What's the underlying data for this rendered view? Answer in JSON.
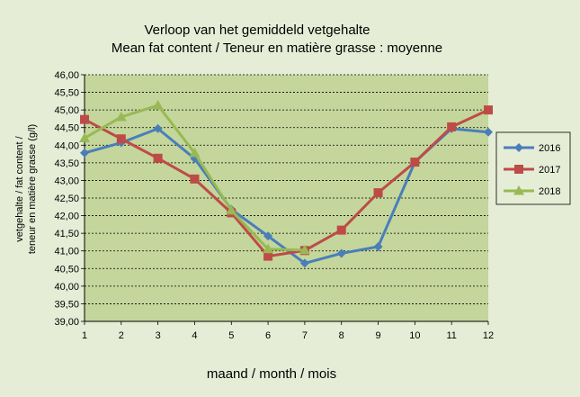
{
  "chart_data": {
    "type": "line",
    "title_line1": "Verloop van het gemiddeld vetgehalte",
    "title_line2": "Mean fat content / Teneur en matière grasse : moyenne",
    "xlabel": "maand / month / mois",
    "ylabel_line1": "vetgehalte / fat content /",
    "ylabel_line2": "teneur en matière grasse (g/l)",
    "x": [
      1,
      2,
      3,
      4,
      5,
      6,
      7,
      8,
      9,
      10,
      11,
      12
    ],
    "ylim": [
      39,
      46
    ],
    "yticks": [
      "39,00",
      "39,50",
      "40,00",
      "40,50",
      "41,00",
      "41,50",
      "42,00",
      "42,50",
      "43,00",
      "43,50",
      "44,00",
      "44,50",
      "45,00",
      "45,50",
      "46,00"
    ],
    "grid": true,
    "legend_position": "right",
    "series": [
      {
        "name": "2016",
        "color": "#4a7ebb",
        "marker": "diamond",
        "values": [
          43.78,
          44.07,
          44.47,
          43.62,
          42.18,
          41.42,
          40.65,
          40.93,
          41.12,
          43.52,
          44.47,
          44.37
        ]
      },
      {
        "name": "2017",
        "color": "#be4b48",
        "marker": "square",
        "values": [
          44.73,
          44.18,
          43.63,
          43.04,
          42.08,
          40.85,
          41.01,
          41.59,
          42.65,
          43.52,
          44.52,
          45.0
        ]
      },
      {
        "name": "2018",
        "color": "#98b954",
        "marker": "triangle",
        "values": [
          44.2,
          44.8,
          45.13,
          43.78,
          42.15,
          41.05,
          41.02,
          null,
          null,
          null,
          null,
          null
        ]
      }
    ]
  }
}
